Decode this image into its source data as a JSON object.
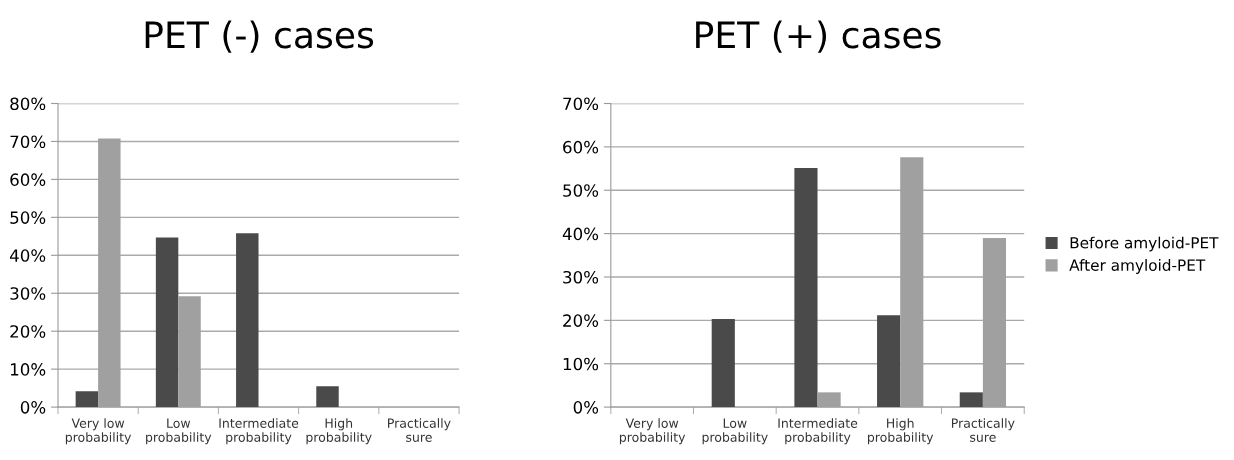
{
  "chart_data": [
    {
      "type": "bar",
      "title": "PET (-) cases",
      "categories": [
        "Very low\nprobability",
        "Low\nprobability",
        "Intermediate\nprobability",
        "High\nprobability",
        "Practically\nsure"
      ],
      "series": [
        {
          "color": "#4a4a4a",
          "values": [
            4.2,
            44.7,
            45.8,
            5.5,
            0
          ]
        },
        {
          "color": "#a0a0a0",
          "values": [
            70.8,
            29.2,
            0,
            0,
            0
          ]
        }
      ],
      "ylim": [
        0,
        80
      ],
      "yticks": [
        {
          "value": 0,
          "label": "0%"
        },
        {
          "value": 10,
          "label": "10%"
        },
        {
          "value": 20,
          "label": "20%"
        },
        {
          "value": 30,
          "label": "30%"
        },
        {
          "value": 40,
          "label": "40%"
        },
        {
          "value": 50,
          "label": "50%"
        },
        {
          "value": 60,
          "label": "60%"
        },
        {
          "value": 70,
          "label": "70%"
        },
        {
          "value": 80,
          "label": "80%"
        }
      ],
      "grid": "y"
    },
    {
      "type": "bar",
      "title": "PET (+) cases",
      "categories": [
        "Very low\nprobability",
        "Low\nprobability",
        "Intermediate\nprobability",
        "High\nprobability",
        "Practically\nsure"
      ],
      "series": [
        {
          "name": "Before amyloid-PET",
          "color": "#4a4a4a",
          "values": [
            0,
            20.3,
            55.1,
            21.2,
            3.4
          ]
        },
        {
          "name": "After amyloid-PET",
          "color": "#a0a0a0",
          "values": [
            0,
            0,
            3.4,
            57.6,
            39.0
          ]
        }
      ],
      "ylim": [
        0,
        70
      ],
      "yticks": [
        {
          "value": 0,
          "label": "0%"
        },
        {
          "value": 10,
          "label": "10%"
        },
        {
          "value": 20,
          "label": "20%"
        },
        {
          "value": 30,
          "label": "30%"
        },
        {
          "value": 40,
          "label": "40%"
        },
        {
          "value": 50,
          "label": "50%"
        },
        {
          "value": 60,
          "label": "60%"
        },
        {
          "value": 70,
          "label": "70%"
        }
      ],
      "grid": "y",
      "legend": "right"
    }
  ]
}
